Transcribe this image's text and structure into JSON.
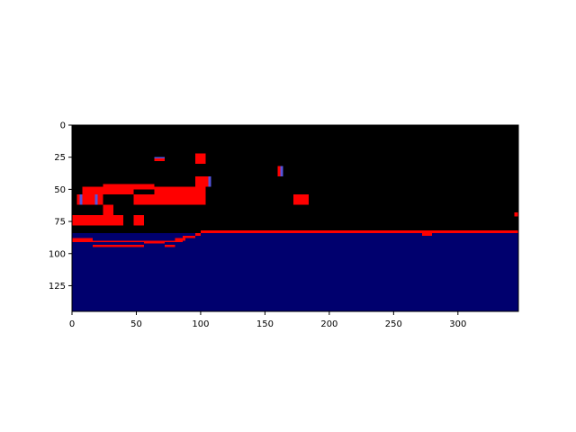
{
  "chart_data": {
    "type": "heatmap",
    "title": "",
    "xlabel": "",
    "ylabel": "",
    "xlim": [
      0,
      347
    ],
    "ylim": [
      145,
      0
    ],
    "y_inverted": true,
    "x_ticks": [
      0,
      50,
      100,
      150,
      200,
      250,
      300
    ],
    "y_ticks": [
      0,
      25,
      50,
      75,
      100,
      125
    ],
    "grid": false,
    "legend": "none",
    "colors": {
      "background": "#000000",
      "water": "#00006e",
      "red": "#ff0000",
      "blue": "#5555dd"
    },
    "regions": [
      {
        "kind": "water",
        "x": [
          0,
          347
        ],
        "y": [
          84,
          145
        ]
      },
      {
        "kind": "water",
        "x": [
          0,
          100
        ],
        "y": [
          88,
          145
        ]
      },
      {
        "kind": "red",
        "x": [
          0,
          16
        ],
        "y": [
          88,
          91
        ]
      },
      {
        "kind": "red",
        "x": [
          16,
          56
        ],
        "y": [
          90,
          91
        ]
      },
      {
        "kind": "red",
        "x": [
          56,
          72
        ],
        "y": [
          90,
          92
        ]
      },
      {
        "kind": "red",
        "x": [
          72,
          86
        ],
        "y": [
          90,
          91
        ]
      },
      {
        "kind": "red",
        "x": [
          16,
          56
        ],
        "y": [
          93,
          95
        ]
      },
      {
        "kind": "red",
        "x": [
          72,
          80
        ],
        "y": [
          93,
          95
        ]
      },
      {
        "kind": "red",
        "x": [
          80,
          88
        ],
        "y": [
          88,
          90
        ]
      },
      {
        "kind": "red",
        "x": [
          86,
          96
        ],
        "y": [
          86,
          88
        ]
      },
      {
        "kind": "red",
        "x": [
          96,
          100
        ],
        "y": [
          84,
          86
        ]
      },
      {
        "kind": "red",
        "x": [
          100,
          347
        ],
        "y": [
          82,
          84
        ]
      },
      {
        "kind": "red",
        "x": [
          272,
          280
        ],
        "y": [
          84,
          86
        ]
      },
      {
        "kind": "red",
        "x": [
          0,
          40
        ],
        "y": [
          70,
          78
        ]
      },
      {
        "kind": "red",
        "x": [
          48,
          56
        ],
        "y": [
          70,
          78
        ]
      },
      {
        "kind": "red",
        "x": [
          24,
          32
        ],
        "y": [
          62,
          70
        ]
      },
      {
        "kind": "red",
        "x": [
          8,
          24
        ],
        "y": [
          48,
          62
        ]
      },
      {
        "kind": "red",
        "x": [
          24,
          48
        ],
        "y": [
          46,
          54
        ]
      },
      {
        "kind": "red",
        "x": [
          48,
          64
        ],
        "y": [
          46,
          50
        ]
      },
      {
        "kind": "red",
        "x": [
          48,
          100
        ],
        "y": [
          54,
          62
        ]
      },
      {
        "kind": "red",
        "x": [
          64,
          96
        ],
        "y": [
          48,
          54
        ]
      },
      {
        "kind": "red",
        "x": [
          96,
          104
        ],
        "y": [
          40,
          62
        ]
      },
      {
        "kind": "red",
        "x": [
          96,
          104
        ],
        "y": [
          22,
          30
        ]
      },
      {
        "kind": "red",
        "x": [
          64,
          72
        ],
        "y": [
          26,
          28
        ]
      },
      {
        "kind": "red",
        "x": [
          172,
          184
        ],
        "y": [
          54,
          62
        ]
      },
      {
        "kind": "red",
        "x": [
          344,
          347
        ],
        "y": [
          68,
          71
        ]
      },
      {
        "kind": "red",
        "x": [
          160,
          162
        ],
        "y": [
          32,
          40
        ]
      },
      {
        "kind": "red",
        "x": [
          104,
          106
        ],
        "y": [
          40,
          48
        ]
      },
      {
        "kind": "red",
        "x": [
          4,
          6
        ],
        "y": [
          54,
          62
        ]
      },
      {
        "kind": "red",
        "x": [
          16,
          18
        ],
        "y": [
          54,
          62
        ]
      },
      {
        "kind": "blue",
        "x": [
          64,
          72
        ],
        "y": [
          25,
          26
        ]
      },
      {
        "kind": "blue",
        "x": [
          162,
          164
        ],
        "y": [
          32,
          40
        ]
      },
      {
        "kind": "blue",
        "x": [
          106,
          108
        ],
        "y": [
          40,
          48
        ]
      },
      {
        "kind": "blue",
        "x": [
          6,
          8
        ],
        "y": [
          54,
          62
        ]
      },
      {
        "kind": "blue",
        "x": [
          18,
          20
        ],
        "y": [
          54,
          62
        ]
      }
    ]
  }
}
